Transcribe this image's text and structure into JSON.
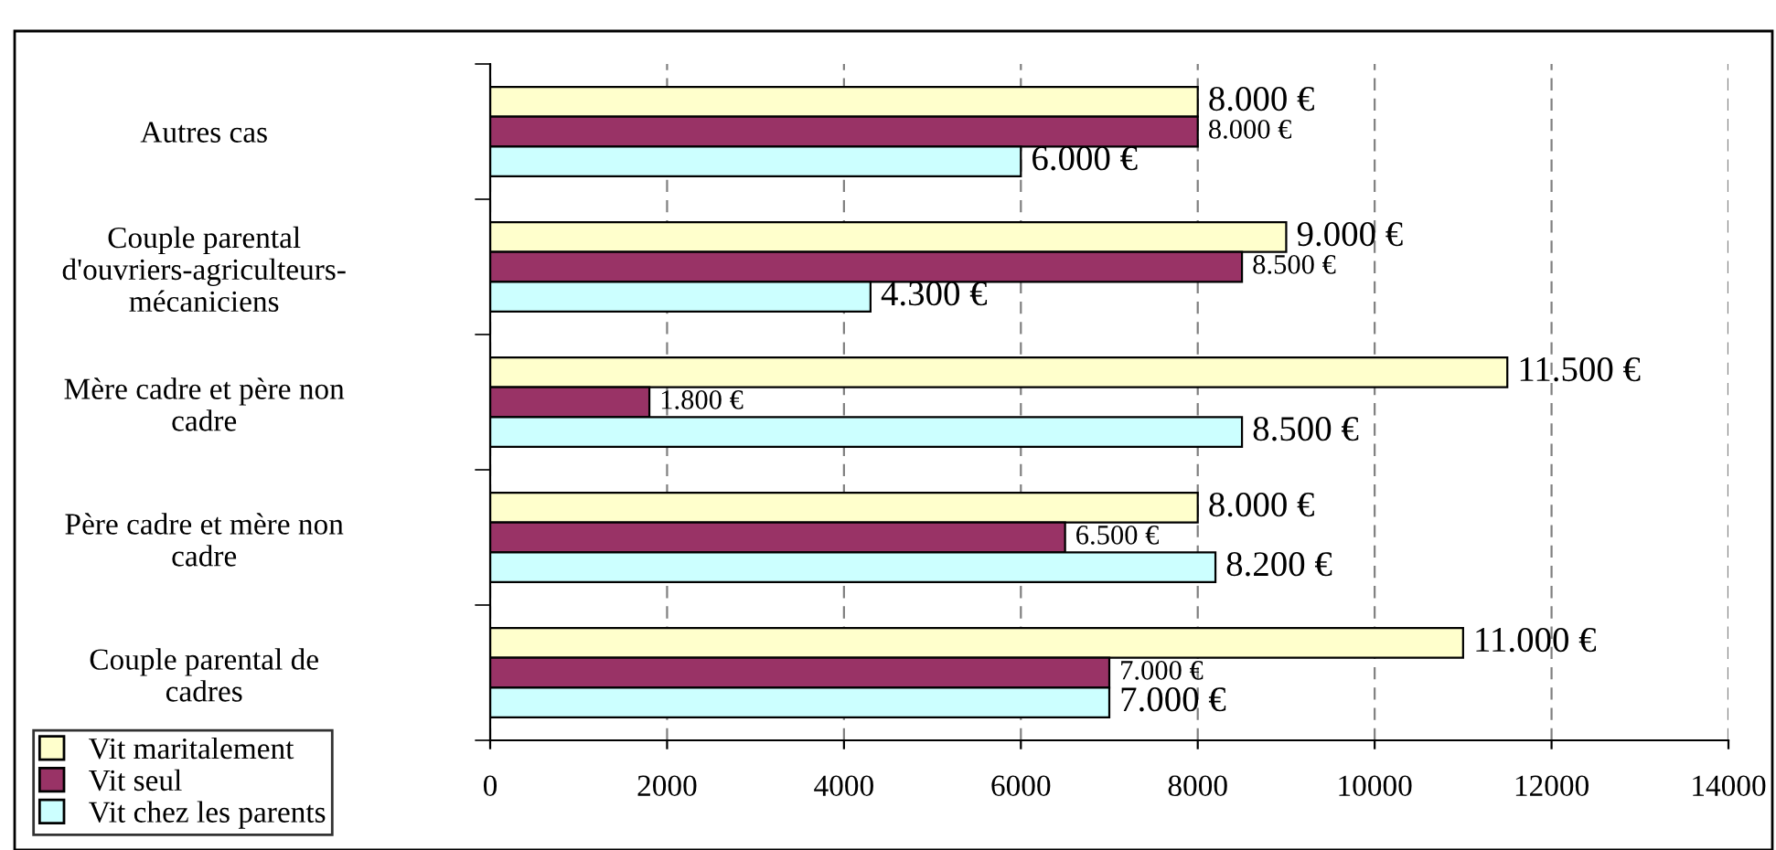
{
  "chart_data": {
    "type": "bar",
    "orientation": "horizontal",
    "categories": [
      "Autres cas",
      "Couple parental\nd'ouvriers-agriculteurs-\nmécaniciens",
      "Mère cadre et père non\ncadre",
      "Père cadre et mère non\ncadre",
      "Couple parental de\ncadres"
    ],
    "series": [
      {
        "name": "Vit maritalement",
        "color": "#ffffcc",
        "values": [
          8000,
          9000,
          11500,
          8000,
          11000
        ],
        "value_labels": [
          "8.000 €",
          "9.000 €",
          "11.500 €",
          "8.000 €",
          "11.000 €"
        ]
      },
      {
        "name": "Vit seul",
        "color": "#993366",
        "values": [
          8000,
          8500,
          1800,
          6500,
          7000
        ],
        "value_labels": [
          "8.000 €",
          "8.500 €",
          "1.800 €",
          "6.500 €",
          "7.000 €"
        ]
      },
      {
        "name": "Vit chez les parents",
        "color": "#ccffff",
        "values": [
          6000,
          4300,
          8500,
          8200,
          7000
        ],
        "value_labels": [
          "6.000 €",
          "4.300 €",
          "8.500 €",
          "8.200 €",
          "7.000 €"
        ]
      }
    ],
    "xlim": [
      0,
      14000
    ],
    "xticks": [
      0,
      2000,
      4000,
      6000,
      8000,
      10000,
      12000,
      14000
    ],
    "grid": "x",
    "legend": "bottom left"
  }
}
